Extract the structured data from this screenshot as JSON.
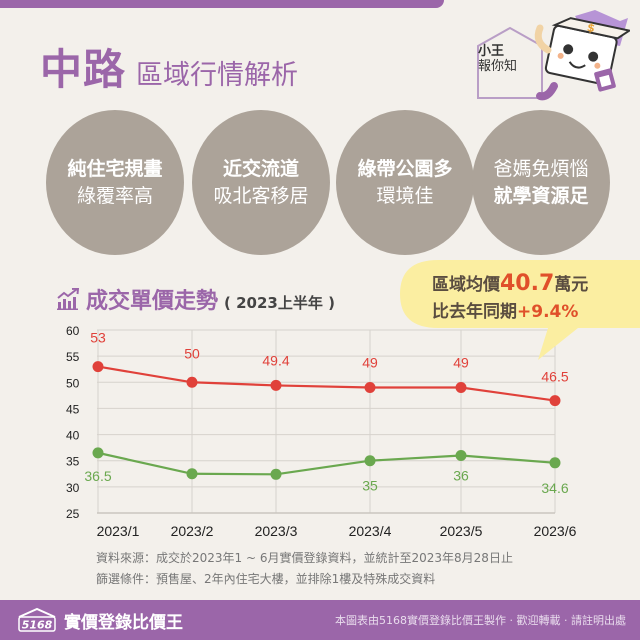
{
  "header": {
    "title_main": "中路",
    "title_sub": "區域行情解析",
    "mascot_line1": "小王",
    "mascot_line2": "報你知"
  },
  "features": [
    {
      "line1": "純住宅規畫",
      "line2": "綠覆率高",
      "bold_line": 1
    },
    {
      "line1": "近交流道",
      "line2": "吸北客移居",
      "bold_line": 1
    },
    {
      "line1": "綠帶公園多",
      "line2": "環境佳",
      "bold_line": 1
    },
    {
      "line1": "爸媽免煩惱",
      "line2": "就學資源足",
      "bold_line": 2
    }
  ],
  "chart_section": {
    "title": "成交單價走勢",
    "period": "( 2023上半年 )"
  },
  "bubble": {
    "avg_label": "區域均價",
    "avg_value": "40.7",
    "avg_unit": "萬元",
    "yoy_label": "比去年同期",
    "yoy_value": "+9.4%"
  },
  "chart_data": {
    "type": "line",
    "title": "成交單價走勢 (2023上半年)",
    "xlabel": "",
    "ylabel": "",
    "categories": [
      "2023/1",
      "2023/2",
      "2023/3",
      "2023/4",
      "2023/5",
      "2023/6"
    ],
    "series": [
      {
        "name": "upper",
        "color": "#e0413a",
        "values": [
          53,
          50,
          49.4,
          49,
          49,
          46.5
        ]
      },
      {
        "name": "lower",
        "color": "#6aa84f",
        "values": [
          36.5,
          32.5,
          32.4,
          35,
          36,
          34.6
        ]
      }
    ],
    "data_labels": {
      "upper": [
        "53",
        "50",
        "49.4",
        "49",
        "49",
        "46.5"
      ],
      "lower": [
        "36.5",
        "",
        "",
        "35",
        "36",
        "34.6"
      ]
    },
    "yticks": [
      25,
      30,
      35,
      40,
      45,
      50,
      55,
      60
    ],
    "ylim": [
      25,
      60
    ],
    "grid": true,
    "legend": "none"
  },
  "notes": {
    "source": "資料來源：成交於2023年1 ~ 6月實價登錄資料，並統計至2023年8月28日止",
    "filter": "篩選條件：預售屋、2年內住宅大樓，並排除1樓及特殊成交資料"
  },
  "footer": {
    "logo_number": "5168",
    "brand": "實價登錄比價王",
    "credit": "本圖表由5168實價登錄比價王製作 · 歡迎轉載 · 請註明出處"
  },
  "colors": {
    "brand_purple": "#9b66a9",
    "circle_gray": "#aca399",
    "bubble_yellow": "#fbeea1",
    "accent_orange": "#e0502a",
    "line_red": "#e0413a",
    "line_green": "#6aa84f"
  }
}
